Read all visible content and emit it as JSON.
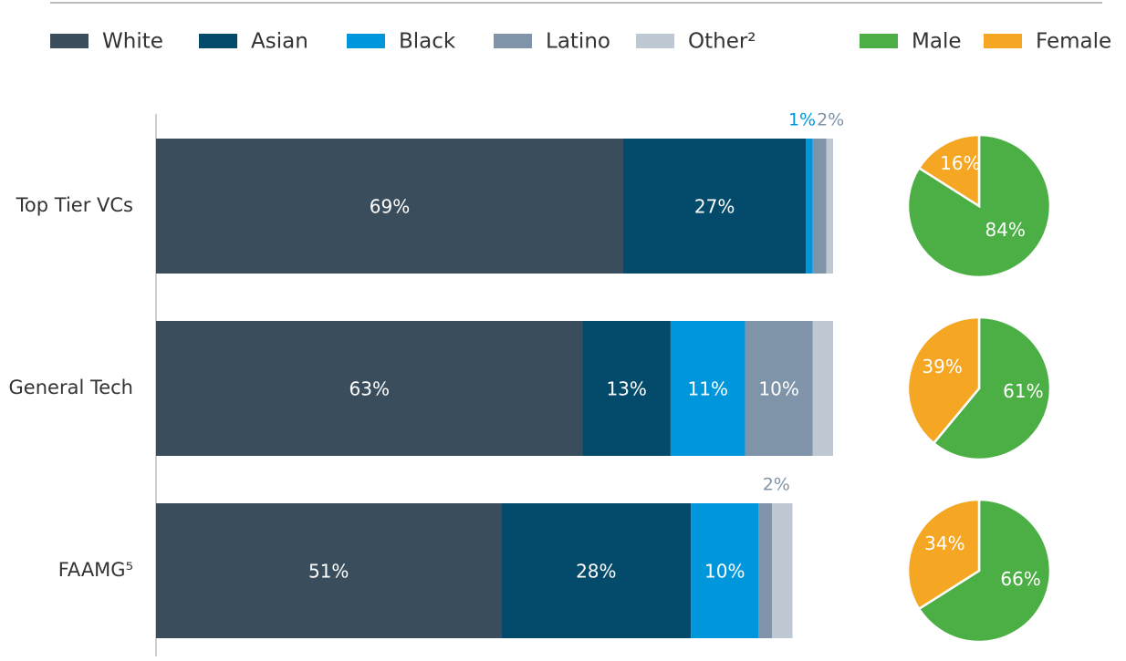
{
  "chart_data": [
    {
      "type": "stacked-bar",
      "orientation": "horizontal",
      "categories": [
        "Top Tier VCs",
        "General Tech",
        "FAAMG⁵"
      ],
      "xlim": [
        0,
        100
      ],
      "series": [
        {
          "name": "White",
          "color": "#394d5c",
          "values": [
            69,
            63,
            51
          ],
          "value_labels": [
            "69%",
            "63%",
            "51%"
          ]
        },
        {
          "name": "Asian",
          "color": "#034a6b",
          "values": [
            27,
            13,
            28
          ],
          "value_labels": [
            "27%",
            "13%",
            "28%"
          ]
        },
        {
          "name": "Black",
          "color": "#0096dc",
          "values": [
            1,
            11,
            10
          ],
          "value_labels": [
            "1%",
            "11%",
            "10%"
          ]
        },
        {
          "name": "Latino",
          "color": "#7f94a8",
          "values": [
            2,
            10,
            2
          ],
          "value_labels": [
            "2%",
            "10%",
            "2%"
          ]
        },
        {
          "name": "Other²",
          "color": "#bec8d2",
          "values": [
            1,
            3,
            3
          ],
          "value_labels": [
            null,
            null,
            null
          ]
        }
      ]
    },
    {
      "type": "pie",
      "categories": [
        "Male",
        "Female"
      ],
      "colors": [
        "#4caf45",
        "#f5a623"
      ],
      "values": [
        [
          84,
          16
        ],
        [
          61,
          39
        ],
        [
          66,
          34
        ]
      ],
      "value_labels": [
        [
          "84%",
          "16%"
        ],
        [
          "61%",
          "39%"
        ],
        [
          "66%",
          "34%"
        ]
      ]
    }
  ]
}
